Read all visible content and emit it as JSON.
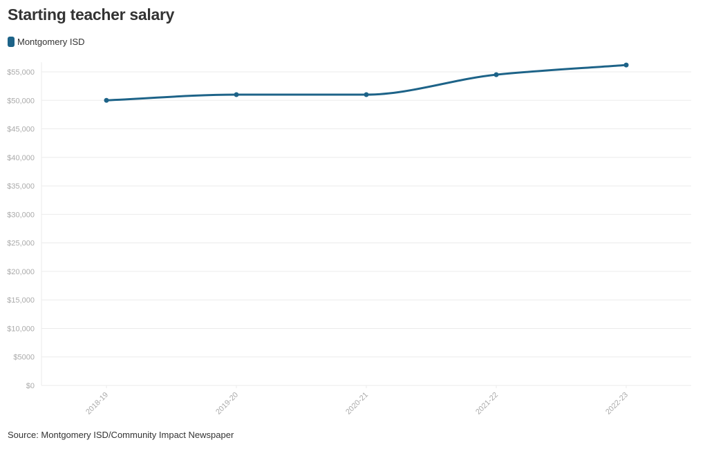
{
  "chart_data": {
    "type": "line",
    "title": "Starting teacher salary",
    "categories": [
      "2018-19",
      "2019-20",
      "2020-21",
      "2021-22",
      "2022-23"
    ],
    "series": [
      {
        "name": "Montgomery ISD",
        "values": [
          50000,
          51000,
          51000,
          54500,
          56200
        ],
        "color": "#1d6388"
      }
    ],
    "ylim": [
      0,
      55000
    ],
    "yticks": [
      0,
      5000,
      10000,
      15000,
      20000,
      25000,
      30000,
      35000,
      40000,
      45000,
      50000,
      55000
    ],
    "ytick_labels": [
      "$0",
      "$5000",
      "$10,000",
      "$15,000",
      "$20,000",
      "$25,000",
      "$30,000",
      "$35,000",
      "$40,000",
      "$45,000",
      "$50,000",
      "$55,000"
    ],
    "xlabel": "",
    "ylabel": "",
    "grid": true,
    "legend": "top-left"
  },
  "source": "Source: Montgomery ISD/Community Impact Newspaper",
  "colors": {
    "series": "#1d6388",
    "grid": "#ebebeb",
    "tick_text": "#aaaaaa",
    "text": "#333333"
  }
}
